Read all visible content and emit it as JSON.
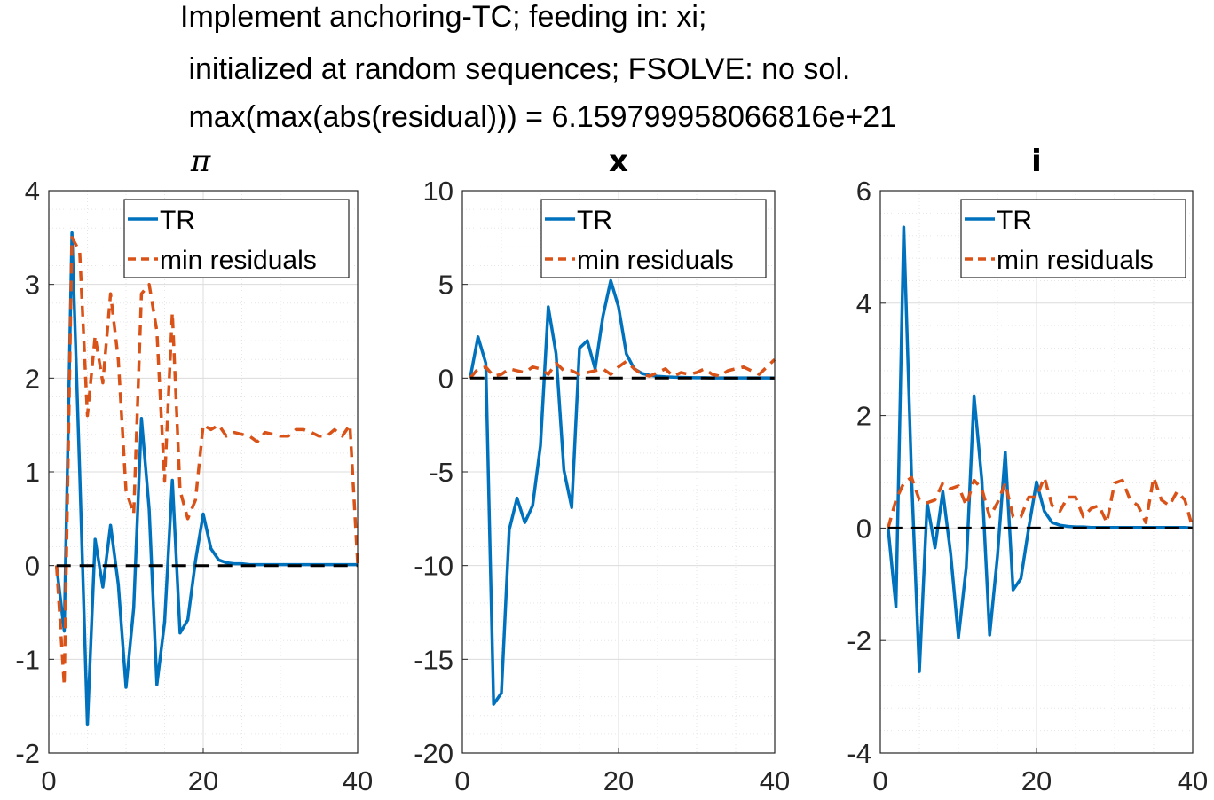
{
  "title_lines": [
    "Implement anchoring-TC; feeding in: xi;",
    " initialized at random sequences; FSOLVE: no sol.",
    " max(max(abs(residual))) = 6.159799958066816e+21"
  ],
  "colors": {
    "tr": "#0072BD",
    "min_residuals": "#D95319",
    "zero": "#000000",
    "grid": "#DCDCDC"
  },
  "chart_data": [
    {
      "type": "line",
      "title": "π",
      "xlim": [
        0,
        40
      ],
      "ylim": [
        -2,
        4
      ],
      "xticks": [
        0,
        20,
        40
      ],
      "yticks": [
        -2,
        -1,
        0,
        1,
        2,
        3,
        4
      ],
      "xtick_labels": [
        "0",
        "20",
        "40"
      ],
      "ytick_labels": [
        "-2",
        "-1",
        "0",
        "1",
        "2",
        "3",
        "4"
      ],
      "grid": true,
      "minor_grid": true,
      "legend": {
        "placement": "top-right",
        "entries": [
          "TR",
          "min residuals"
        ]
      },
      "x": [
        1,
        2,
        3,
        4,
        5,
        6,
        7,
        8,
        9,
        10,
        11,
        12,
        13,
        14,
        15,
        16,
        17,
        18,
        19,
        20,
        21,
        22,
        23,
        24,
        25,
        26,
        27,
        28,
        29,
        30,
        31,
        32,
        33,
        34,
        35,
        36,
        37,
        38,
        39,
        40
      ],
      "series": [
        {
          "name": "TR",
          "style": "solid",
          "values": [
            0,
            -0.7,
            3.55,
            1.0,
            -1.7,
            0.28,
            -0.23,
            0.43,
            -0.2,
            -1.3,
            -0.45,
            1.57,
            0.6,
            -1.27,
            -0.6,
            0.91,
            -0.72,
            -0.58,
            0.05,
            0.55,
            0.18,
            0.06,
            0.03,
            0.02,
            0.02,
            0.01,
            0.01,
            0.01,
            0.01,
            0.01,
            0.01,
            0.01,
            0.01,
            0.01,
            0.01,
            0.01,
            0.01,
            0.01,
            0.01,
            0.01
          ]
        },
        {
          "name": "min residuals",
          "style": "dashed",
          "values": [
            0,
            -1.28,
            3.5,
            3.35,
            1.6,
            2.45,
            1.95,
            2.9,
            2.2,
            0.8,
            0.55,
            2.9,
            3.0,
            2.5,
            0.9,
            2.7,
            0.8,
            0.5,
            0.7,
            1.5,
            1.45,
            1.5,
            1.38,
            1.42,
            1.4,
            1.38,
            1.32,
            1.42,
            1.4,
            1.38,
            1.38,
            1.45,
            1.45,
            1.42,
            1.38,
            1.38,
            1.45,
            1.38,
            1.5,
            0.02
          ]
        },
        {
          "name": "",
          "style": "zero",
          "values": [
            0,
            0,
            0,
            0,
            0,
            0,
            0,
            0,
            0,
            0,
            0,
            0,
            0,
            0,
            0,
            0,
            0,
            0,
            0,
            0,
            0,
            0,
            0,
            0,
            0,
            0,
            0,
            0,
            0,
            0,
            0,
            0,
            0,
            0,
            0,
            0,
            0,
            0,
            0,
            0
          ]
        }
      ]
    },
    {
      "type": "line",
      "title": "x",
      "xlim": [
        0,
        40
      ],
      "ylim": [
        -20,
        10
      ],
      "xticks": [
        0,
        20,
        40
      ],
      "yticks": [
        -20,
        -15,
        -10,
        -5,
        0,
        5,
        10
      ],
      "xtick_labels": [
        "0",
        "20",
        "40"
      ],
      "ytick_labels": [
        "-20",
        "-15",
        "-10",
        "-5",
        "0",
        "5",
        "10"
      ],
      "grid": true,
      "minor_grid": true,
      "legend": {
        "placement": "top-right",
        "entries": [
          "TR",
          "min residuals"
        ]
      },
      "x": [
        1,
        2,
        3,
        4,
        5,
        6,
        7,
        8,
        9,
        10,
        11,
        12,
        13,
        14,
        15,
        16,
        17,
        18,
        19,
        20,
        21,
        22,
        23,
        24,
        25,
        26,
        27,
        28,
        29,
        30,
        31,
        32,
        33,
        34,
        35,
        36,
        37,
        38,
        39,
        40
      ],
      "series": [
        {
          "name": "TR",
          "style": "solid",
          "values": [
            0,
            2.2,
            0.8,
            -17.4,
            -16.8,
            -8.1,
            -6.4,
            -7.7,
            -6.8,
            -3.6,
            3.8,
            1.3,
            -4.9,
            -6.9,
            1.6,
            2.0,
            0.5,
            3.3,
            5.2,
            3.8,
            1.3,
            0.5,
            0.25,
            0.15,
            0.1,
            0.07,
            0.05,
            0.04,
            0.03,
            0.02,
            0.02,
            0.01,
            0.01,
            0.01,
            0.01,
            0.01,
            0.01,
            0.01,
            0.01,
            0.0
          ]
        },
        {
          "name": "min residuals",
          "style": "dashed",
          "values": [
            0,
            0.5,
            0.6,
            0.1,
            0.2,
            0.5,
            0.4,
            0.3,
            0.6,
            0.5,
            0.2,
            0.8,
            0.4,
            0.4,
            0.2,
            0.3,
            0.4,
            0.5,
            0.2,
            0.6,
            0.9,
            0.5,
            0.2,
            0.1,
            0.3,
            0.5,
            0.1,
            0.3,
            0.2,
            0.3,
            0.5,
            0.2,
            0.1,
            0.4,
            0.5,
            0.6,
            0.4,
            0.2,
            0.6,
            1.0
          ]
        },
        {
          "name": "",
          "style": "zero",
          "values": [
            0,
            0,
            0,
            0,
            0,
            0,
            0,
            0,
            0,
            0,
            0,
            0,
            0,
            0,
            0,
            0,
            0,
            0,
            0,
            0,
            0,
            0,
            0,
            0,
            0,
            0,
            0,
            0,
            0,
            0,
            0,
            0,
            0,
            0,
            0,
            0,
            0,
            0,
            0,
            0
          ]
        }
      ]
    },
    {
      "type": "line",
      "title": "i",
      "xlim": [
        0,
        40
      ],
      "ylim": [
        -4,
        6
      ],
      "xticks": [
        0,
        20,
        40
      ],
      "yticks": [
        -4,
        -2,
        0,
        2,
        4,
        6
      ],
      "xtick_labels": [
        "0",
        "20",
        "40"
      ],
      "ytick_labels": [
        "-4",
        "-2",
        "0",
        "2",
        "4",
        "6"
      ],
      "grid": true,
      "minor_grid": true,
      "legend": {
        "placement": "top-right",
        "entries": [
          "TR",
          "min residuals"
        ]
      },
      "x": [
        1,
        2,
        3,
        4,
        5,
        6,
        7,
        8,
        9,
        10,
        11,
        12,
        13,
        14,
        15,
        16,
        17,
        18,
        19,
        20,
        21,
        22,
        23,
        24,
        25,
        26,
        27,
        28,
        29,
        30,
        31,
        32,
        33,
        34,
        35,
        36,
        37,
        38,
        39,
        40
      ],
      "series": [
        {
          "name": "TR",
          "style": "solid",
          "values": [
            0,
            -1.4,
            5.35,
            0.9,
            -2.55,
            0.45,
            -0.35,
            0.65,
            -0.45,
            -1.95,
            -0.7,
            2.35,
            0.85,
            -1.9,
            -0.5,
            1.35,
            -1.1,
            -0.9,
            0.0,
            0.82,
            0.3,
            0.1,
            0.05,
            0.03,
            0.02,
            0.02,
            0.01,
            0.01,
            0.01,
            0.01,
            0.01,
            0.01,
            0.01,
            0.01,
            0.01,
            0.01,
            0.01,
            0.01,
            0.01,
            0.0
          ]
        },
        {
          "name": "min residuals",
          "style": "dashed",
          "values": [
            0,
            0.5,
            0.8,
            0.9,
            0.5,
            0.45,
            0.5,
            0.8,
            0.7,
            0.75,
            0.4,
            0.85,
            0.7,
            0.2,
            0.45,
            0.8,
            0.2,
            0.2,
            0.55,
            0.55,
            0.9,
            0.4,
            0.3,
            0.55,
            0.55,
            0.2,
            0.35,
            0.4,
            0.1,
            0.8,
            0.85,
            0.5,
            0.4,
            0.1,
            0.9,
            0.5,
            0.4,
            0.65,
            0.5,
            0.0
          ]
        },
        {
          "name": "",
          "style": "zero",
          "values": [
            0,
            0,
            0,
            0,
            0,
            0,
            0,
            0,
            0,
            0,
            0,
            0,
            0,
            0,
            0,
            0,
            0,
            0,
            0,
            0,
            0,
            0,
            0,
            0,
            0,
            0,
            0,
            0,
            0,
            0,
            0,
            0,
            0,
            0,
            0,
            0,
            0,
            0,
            0,
            0
          ]
        }
      ]
    }
  ]
}
